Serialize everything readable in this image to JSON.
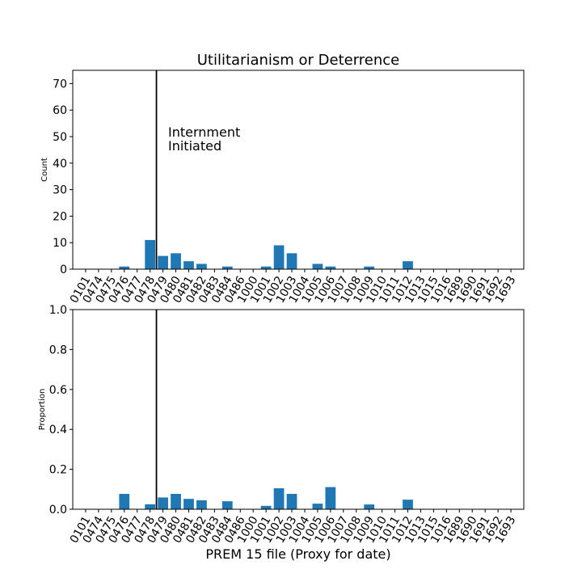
{
  "title": "Utilitarianism or Deterrence",
  "accent_color": "#1f77b4",
  "chart_data": [
    {
      "type": "bar",
      "categories": [
        "0101",
        "0474",
        "0475",
        "0476",
        "0477",
        "0478",
        "0479",
        "0480",
        "0481",
        "0482",
        "0483",
        "0484",
        "0486",
        "1000",
        "1001",
        "1002",
        "1003",
        "1004",
        "1005",
        "1006",
        "1007",
        "1008",
        "1009",
        "1010",
        "1011",
        "1012",
        "1013",
        "1015",
        "1016",
        "1689",
        "1690",
        "1691",
        "1692",
        "1693"
      ],
      "values": [
        0,
        0,
        0,
        1,
        0,
        11,
        5,
        6,
        3,
        2,
        0,
        1,
        0,
        0,
        1,
        9,
        6,
        0,
        2,
        1,
        0,
        0,
        1,
        0,
        0,
        3,
        0,
        0,
        0,
        0,
        0,
        0,
        0,
        0
      ],
      "ylabel": "Count",
      "xlabel": "",
      "ylim": [
        0,
        75
      ],
      "yticks": [
        0,
        10,
        20,
        30,
        40,
        50,
        60,
        70
      ],
      "vline_category": "0478",
      "annotation": [
        "Internment",
        "Initiated"
      ]
    },
    {
      "type": "bar",
      "categories": [
        "0101",
        "0474",
        "0475",
        "0476",
        "0477",
        "0478",
        "0479",
        "0480",
        "0481",
        "0482",
        "0483",
        "0484",
        "0486",
        "1000",
        "1001",
        "1002",
        "1003",
        "1004",
        "1005",
        "1006",
        "1007",
        "1008",
        "1009",
        "1010",
        "1011",
        "1012",
        "1013",
        "1015",
        "1016",
        "1689",
        "1690",
        "1691",
        "1692",
        "1693"
      ],
      "values": [
        0,
        0,
        0,
        0.077,
        0,
        0.025,
        0.059,
        0.077,
        0.052,
        0.045,
        0,
        0.04,
        0,
        0,
        0.017,
        0.105,
        0.077,
        0,
        0.028,
        0.111,
        0,
        0,
        0.024,
        0,
        0,
        0.048,
        0,
        0,
        0,
        0,
        0,
        0,
        0,
        0
      ],
      "ylabel": "Proportion",
      "xlabel": "PREM 15 file (Proxy for date)",
      "ylim": [
        0,
        1.0
      ],
      "yticks": [
        "0.0",
        "0.2",
        "0.4",
        "0.6",
        "0.8",
        "1.0"
      ],
      "vline_category": "0478"
    }
  ]
}
